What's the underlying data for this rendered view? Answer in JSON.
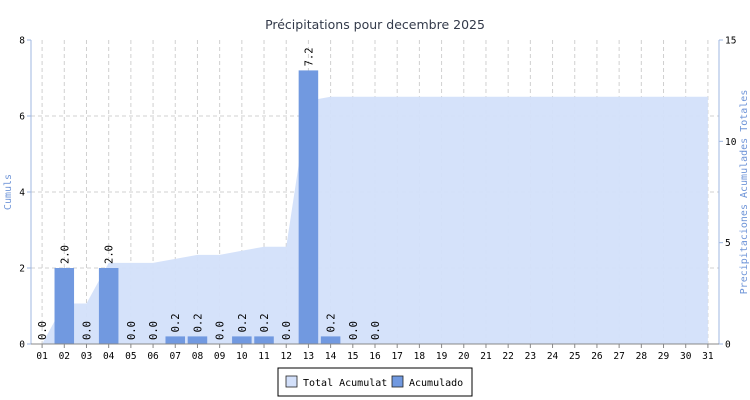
{
  "chart_data": {
    "type": "bar",
    "title": "Précipitations pour decembre 2025",
    "ylabel_left": "Cumuls",
    "ylabel_right": "Precipitaciones Acumulades Totales",
    "ylim_left": [
      0,
      8
    ],
    "yticks_left": [
      "0",
      "2",
      "4",
      "6",
      "8"
    ],
    "ylim_right": [
      0,
      15
    ],
    "yticks_right": [
      "0",
      "5",
      "10",
      "15"
    ],
    "grid": true,
    "legend_position": "bottom-center",
    "categories": [
      "01",
      "02",
      "03",
      "04",
      "05",
      "06",
      "07",
      "08",
      "09",
      "10",
      "11",
      "12",
      "13",
      "14",
      "15",
      "16",
      "17",
      "18",
      "19",
      "20",
      "21",
      "22",
      "23",
      "24",
      "25",
      "26",
      "27",
      "28",
      "29",
      "30",
      "31"
    ],
    "series": [
      {
        "name": "Total Acumulat",
        "kind": "area",
        "axis": "right",
        "color": "#d3e0fa",
        "values": [
          0.0,
          2.0,
          2.0,
          4.0,
          4.0,
          4.0,
          4.2,
          4.4,
          4.4,
          4.6,
          4.8,
          4.8,
          12.0,
          12.2,
          12.2,
          12.2,
          12.2,
          12.2,
          12.2,
          12.2,
          12.2,
          12.2,
          12.2,
          12.2,
          12.2,
          12.2,
          12.2,
          12.2,
          12.2,
          12.2,
          12.2
        ]
      },
      {
        "name": "Acumulado",
        "kind": "bar",
        "axis": "left",
        "color": "#7199e0",
        "values": [
          0.0,
          2.0,
          0.0,
          2.0,
          0.0,
          0.0,
          0.2,
          0.2,
          0.0,
          0.2,
          0.2,
          0.0,
          7.2,
          0.2,
          0.0,
          0.0,
          null,
          null,
          null,
          null,
          null,
          null,
          null,
          null,
          null,
          null,
          null,
          null,
          null,
          null,
          null
        ]
      }
    ]
  }
}
